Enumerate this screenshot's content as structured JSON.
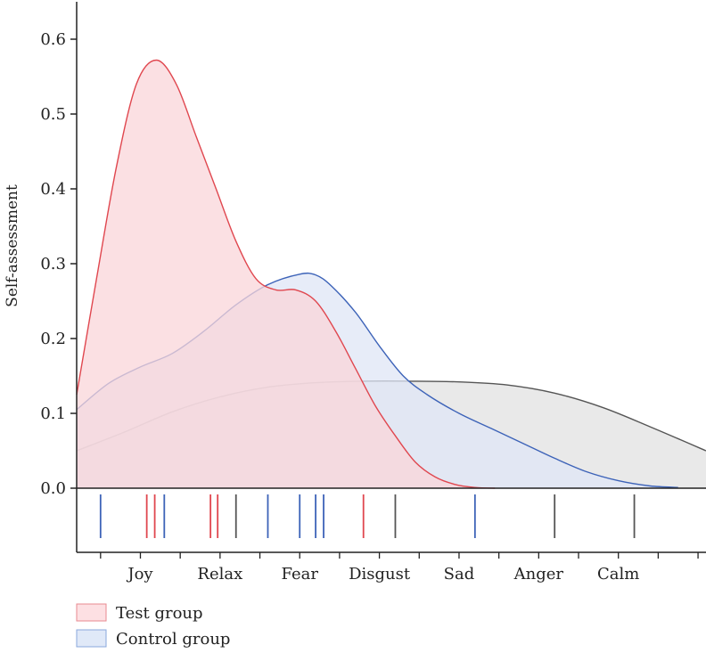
{
  "chart_data": {
    "type": "area",
    "ylabel": "Self-assessment",
    "xlabel": "",
    "ylim": [
      0,
      0.65
    ],
    "y_ticks": [
      "0.0",
      "0.1",
      "0.2",
      "0.3",
      "0.4",
      "0.5",
      "0.6"
    ],
    "y_tick_values": [
      0,
      0.1,
      0.2,
      0.3,
      0.4,
      0.5,
      0.6
    ],
    "categories": [
      "Joy",
      "Relax",
      "Fear",
      "Disgust",
      "Sad",
      "Anger",
      "Calm"
    ],
    "xlim": [
      0.2,
      8.1
    ],
    "grid": false,
    "legend_position": "bottom-left",
    "series": [
      {
        "name": "Test group",
        "key": "test",
        "fill": "#f9d6d9",
        "stroke": "#e0474f",
        "x": [
          0.2,
          0.45,
          0.7,
          0.95,
          1.2,
          1.45,
          1.7,
          1.95,
          2.2,
          2.45,
          2.7,
          2.95,
          3.2,
          3.45,
          3.7,
          3.95,
          4.2,
          4.45,
          4.7,
          4.95,
          5.2,
          5.45
        ],
        "y": [
          0.125,
          0.28,
          0.43,
          0.54,
          0.572,
          0.54,
          0.47,
          0.4,
          0.33,
          0.28,
          0.265,
          0.265,
          0.25,
          0.21,
          0.16,
          0.11,
          0.07,
          0.035,
          0.015,
          0.005,
          0.001,
          0.0
        ]
      },
      {
        "name": "Control group",
        "key": "control",
        "fill": "#dfe6f6",
        "stroke": "#3d63b8",
        "x": [
          0.2,
          0.6,
          1.0,
          1.4,
          1.8,
          2.2,
          2.6,
          3.0,
          3.2,
          3.4,
          3.7,
          4.0,
          4.3,
          4.6,
          5.0,
          5.4,
          5.8,
          6.2,
          6.6,
          7.0,
          7.4,
          7.75
        ],
        "y": [
          0.105,
          0.14,
          0.162,
          0.18,
          0.21,
          0.245,
          0.272,
          0.286,
          0.285,
          0.27,
          0.235,
          0.19,
          0.15,
          0.125,
          0.1,
          0.08,
          0.06,
          0.04,
          0.022,
          0.01,
          0.003,
          0.001
        ]
      },
      {
        "key": "other",
        "fill": "#e9e9e9",
        "stroke": "#555555",
        "x": [
          0.2,
          0.8,
          1.4,
          2.0,
          2.6,
          3.2,
          3.8,
          4.4,
          5.0,
          5.6,
          6.2,
          6.8,
          7.4,
          8.1
        ],
        "y": [
          0.05,
          0.075,
          0.102,
          0.122,
          0.135,
          0.141,
          0.143,
          0.143,
          0.142,
          0.138,
          0.127,
          0.108,
          0.082,
          0.05
        ]
      }
    ],
    "rug_marks": [
      {
        "x": 0.5,
        "series": "control"
      },
      {
        "x": 1.08,
        "series": "test"
      },
      {
        "x": 1.18,
        "series": "test"
      },
      {
        "x": 1.3,
        "series": "control"
      },
      {
        "x": 1.88,
        "series": "test"
      },
      {
        "x": 1.97,
        "series": "test"
      },
      {
        "x": 2.2,
        "series": "other"
      },
      {
        "x": 2.6,
        "series": "control"
      },
      {
        "x": 3.0,
        "series": "control"
      },
      {
        "x": 3.2,
        "series": "control"
      },
      {
        "x": 3.3,
        "series": "control"
      },
      {
        "x": 3.8,
        "series": "test"
      },
      {
        "x": 4.2,
        "series": "other"
      },
      {
        "x": 5.2,
        "series": "control"
      },
      {
        "x": 6.2,
        "series": "other"
      },
      {
        "x": 7.2,
        "series": "other"
      }
    ],
    "legend": [
      {
        "label": "Test group",
        "fill": "#fde0e3",
        "stroke": "#e88a90"
      },
      {
        "label": "Control group",
        "fill": "#e0e9f8",
        "stroke": "#8aa8dc"
      }
    ]
  }
}
